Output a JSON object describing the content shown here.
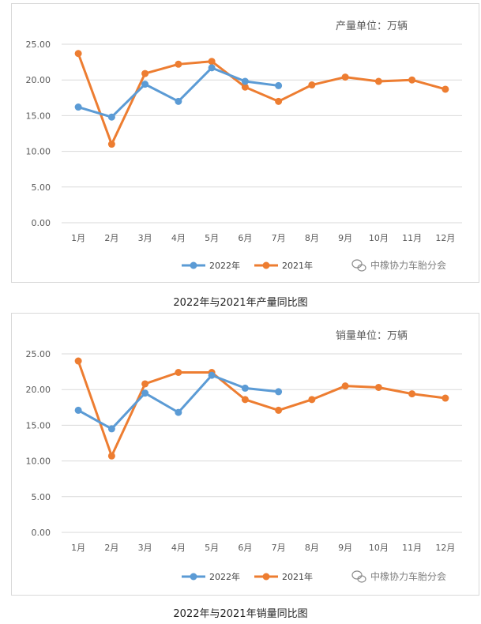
{
  "chart_data": [
    {
      "type": "line",
      "unit_note": "产量单位：万辆",
      "caption": "2022年与2021年产量同比图",
      "categories": [
        "1月",
        "2月",
        "3月",
        "4月",
        "5月",
        "6月",
        "7月",
        "8月",
        "9月",
        "10月",
        "11月",
        "12月"
      ],
      "ylim": [
        0,
        25
      ],
      "yticks": [
        "0.00",
        "5.00",
        "10.00",
        "15.00",
        "20.00",
        "25.00"
      ],
      "grid": true,
      "legend_position": "bottom",
      "series": [
        {
          "name": "2022年",
          "color": "#5B9BD5",
          "values": [
            16.2,
            14.8,
            19.4,
            17.0,
            21.7,
            19.8,
            19.2,
            null,
            null,
            null,
            null,
            null
          ]
        },
        {
          "name": "2021年",
          "color": "#ED7D31",
          "values": [
            23.7,
            11.0,
            20.9,
            22.2,
            22.6,
            19.0,
            17.0,
            19.3,
            20.4,
            19.8,
            20.0,
            18.7
          ]
        }
      ],
      "watermark": "中橡协力车胎分会"
    },
    {
      "type": "line",
      "unit_note": "销量单位：万辆",
      "caption": "2022年与2021年销量同比图",
      "categories": [
        "1月",
        "2月",
        "3月",
        "4月",
        "5月",
        "6月",
        "7月",
        "8月",
        "9月",
        "10月",
        "11月",
        "12月"
      ],
      "ylim": [
        0,
        25
      ],
      "yticks": [
        "0.00",
        "5.00",
        "10.00",
        "15.00",
        "20.00",
        "25.00"
      ],
      "grid": true,
      "legend_position": "bottom",
      "series": [
        {
          "name": "2022年",
          "color": "#5B9BD5",
          "values": [
            17.1,
            14.5,
            19.5,
            16.8,
            22.0,
            20.2,
            19.7,
            null,
            null,
            null,
            null,
            null
          ]
        },
        {
          "name": "2021年",
          "color": "#ED7D31",
          "values": [
            24.0,
            10.7,
            20.8,
            22.4,
            22.4,
            18.6,
            17.1,
            18.6,
            20.5,
            20.3,
            19.4,
            18.8
          ]
        }
      ],
      "watermark": "中橡协力车胎分会"
    }
  ]
}
